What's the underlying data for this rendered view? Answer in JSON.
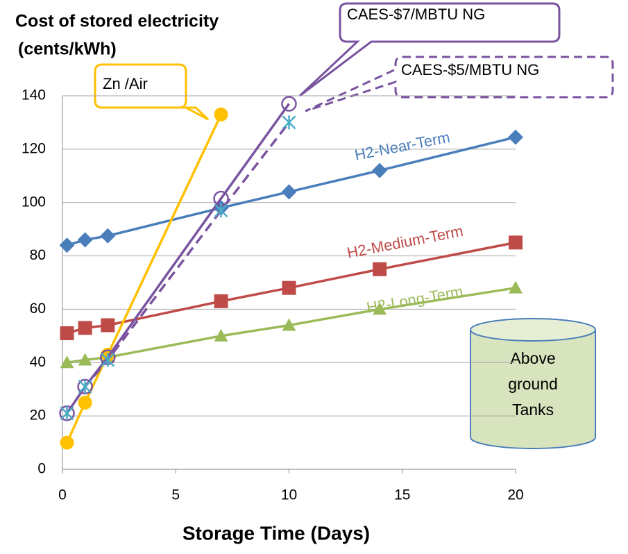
{
  "chart_data": {
    "type": "line",
    "title": "Cost of stored electricity",
    "subtitle": "(cents/kWh)",
    "x_label": "Storage Time (Days)",
    "xlim": [
      0,
      20
    ],
    "ylim": [
      0,
      140
    ],
    "xticks": [
      0,
      5,
      10,
      15,
      20
    ],
    "yticks": [
      0,
      20,
      40,
      60,
      80,
      100,
      120,
      140
    ],
    "grid": true,
    "series": [
      {
        "name": "H2-Long-Term",
        "color": "#9bbb59",
        "marker": "triangle",
        "x": [
          0.2,
          1,
          2,
          7,
          10,
          14,
          20
        ],
        "values": [
          40,
          41,
          42,
          50,
          54,
          60,
          68
        ]
      },
      {
        "name": "H2-Medium-Term",
        "color": "#be4b48",
        "marker": "square",
        "x": [
          0.2,
          1,
          2,
          7,
          10,
          14,
          20
        ],
        "values": [
          51,
          53,
          54,
          63,
          68,
          75,
          85
        ]
      },
      {
        "name": "H2-Near-Term",
        "color": "#4a7ebb",
        "marker": "diamond",
        "x": [
          0.2,
          1,
          2,
          7,
          10,
          14,
          20
        ],
        "values": [
          84,
          86,
          87.5,
          98,
          104,
          112,
          124.5
        ]
      },
      {
        "name": "Zn /Air",
        "color": "#ffc000",
        "marker": "circle",
        "x": [
          0.2,
          1,
          2,
          7
        ],
        "values": [
          10,
          25,
          43,
          133
        ]
      },
      {
        "name": "CAES-$7/MBTU NG",
        "color": "#7953a0",
        "marker": "open-circle",
        "x": [
          0.2,
          1,
          2,
          7,
          10
        ],
        "values": [
          21,
          31,
          42,
          101.5,
          137
        ]
      },
      {
        "name": "CAES-$5/MBTU NG",
        "color": "#7953a0",
        "marker": "asterisk",
        "marker_color": "#4bacc6",
        "dashed": true,
        "x": [
          0.2,
          1,
          2,
          7,
          10
        ],
        "values": [
          21,
          31,
          41,
          97,
          130
        ]
      }
    ],
    "tank_label": [
      "Above",
      "ground",
      "Tanks"
    ]
  }
}
